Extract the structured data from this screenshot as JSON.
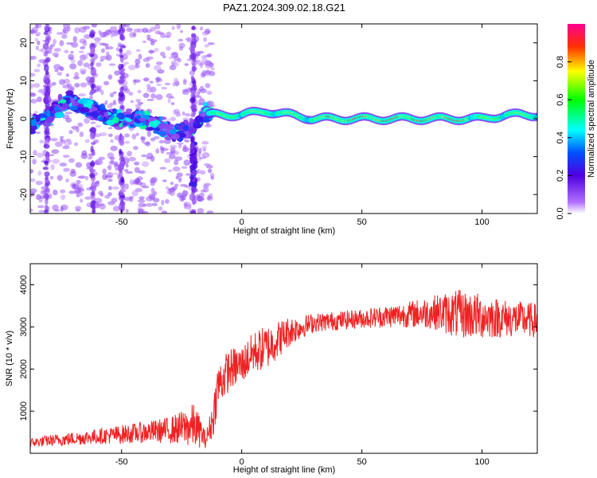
{
  "title": "PAZ1.2024.309.02.18.G21",
  "colors": {
    "snr_line": "#ee2222",
    "background": "#ffffff",
    "axis": "#000000"
  },
  "chart_data": [
    {
      "type": "heatmap",
      "xlabel": "Height of straight line (km)",
      "ylabel": "Frequency (Hz)",
      "xlim": [
        -88,
        123
      ],
      "ylim": [
        -25,
        25
      ],
      "xticks": [
        -50,
        0,
        50,
        100
      ],
      "yticks": [
        -20,
        -10,
        0,
        10,
        20
      ],
      "colorbar": {
        "label": "Normalized spectral amplitude",
        "range": [
          0,
          1
        ],
        "ticks": [
          0.0,
          0.2,
          0.4,
          0.6,
          0.8
        ],
        "colormap": "rainbow (purple-blue-cyan-green-yellow-red-magenta)"
      },
      "ridge": {
        "description": "Dominant frequency ridge near 0 Hz; noisy scattered energy below -15 km, coherent narrow band above",
        "x": [
          -88,
          -80,
          -72,
          -65,
          -58,
          -50,
          -42,
          -35,
          -28,
          -22,
          -15,
          0,
          10,
          20,
          30,
          40,
          50,
          60,
          70,
          80,
          90,
          100,
          110,
          120
        ],
        "freq": [
          -2,
          1,
          5,
          3,
          1,
          0,
          0,
          -2,
          -4,
          -3,
          1,
          1,
          2,
          1,
          0,
          0,
          0,
          0,
          0,
          0,
          0,
          0,
          1,
          1
        ]
      },
      "grid": false
    },
    {
      "type": "line",
      "xlabel": "Height of straight line (km)",
      "ylabel": "SNR (10 * v/v)",
      "xlim": [
        -88,
        123
      ],
      "ylim": [
        0,
        4500
      ],
      "xticks": [
        -50,
        0,
        50,
        100
      ],
      "yticks": [
        1000,
        2000,
        3000,
        4000
      ],
      "series": [
        {
          "x": [
            -88,
            -80,
            -70,
            -60,
            -50,
            -40,
            -30,
            -25,
            -20,
            -17,
            -15,
            -12,
            -10,
            -5,
            0,
            5,
            10,
            15,
            20,
            25,
            30,
            40,
            50,
            60,
            70,
            80,
            90,
            100,
            110,
            123
          ],
          "values": [
            250,
            300,
            350,
            400,
            450,
            500,
            550,
            600,
            650,
            500,
            300,
            800,
            1600,
            2000,
            2100,
            2400,
            2500,
            2700,
            2900,
            3000,
            3100,
            3150,
            3200,
            3250,
            3300,
            3350,
            3300,
            3250,
            3200,
            3150
          ],
          "noise_amplitude": [
            120,
            150,
            180,
            200,
            250,
            280,
            350,
            450,
            600,
            400,
            200,
            500,
            600,
            550,
            500,
            550,
            600,
            500,
            400,
            300,
            250,
            250,
            250,
            300,
            350,
            450,
            650,
            600,
            500,
            450
          ]
        }
      ],
      "grid": false
    }
  ]
}
